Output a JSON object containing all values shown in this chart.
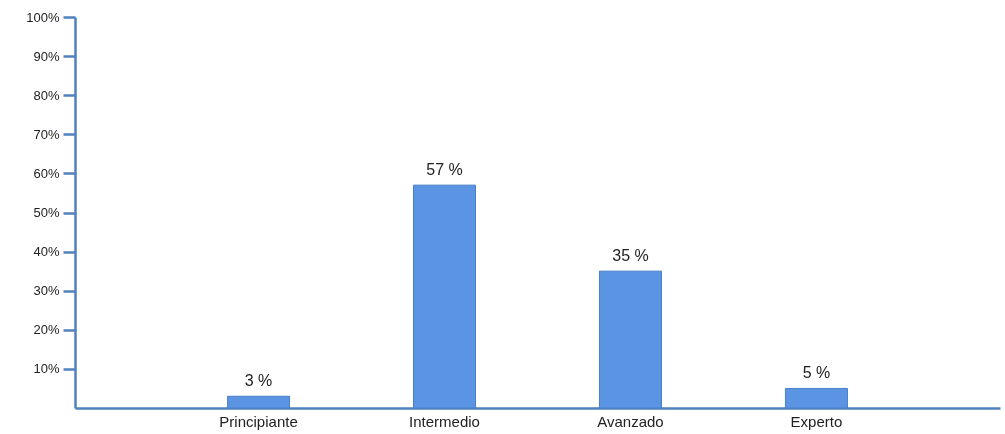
{
  "chart_data": {
    "type": "bar",
    "categories": [
      "Principiante",
      "Intermedio",
      "Avanzado",
      "Experto"
    ],
    "values": [
      3,
      57,
      35,
      5
    ],
    "value_labels": [
      "3 %",
      "57 %",
      "35 %",
      "5 %"
    ],
    "color": "#5b94e3",
    "ylim": [
      0,
      100
    ],
    "yticks": [
      {
        "value": 10,
        "label": "10%"
      },
      {
        "value": 20,
        "label": "20%"
      },
      {
        "value": 30,
        "label": "30%"
      },
      {
        "value": 40,
        "label": "40%"
      },
      {
        "value": 50,
        "label": "50%"
      },
      {
        "value": 60,
        "label": "60%"
      },
      {
        "value": 70,
        "label": "70%"
      },
      {
        "value": 80,
        "label": "80%"
      },
      {
        "value": 90,
        "label": "90%"
      },
      {
        "value": 100,
        "label": "100%"
      }
    ]
  }
}
